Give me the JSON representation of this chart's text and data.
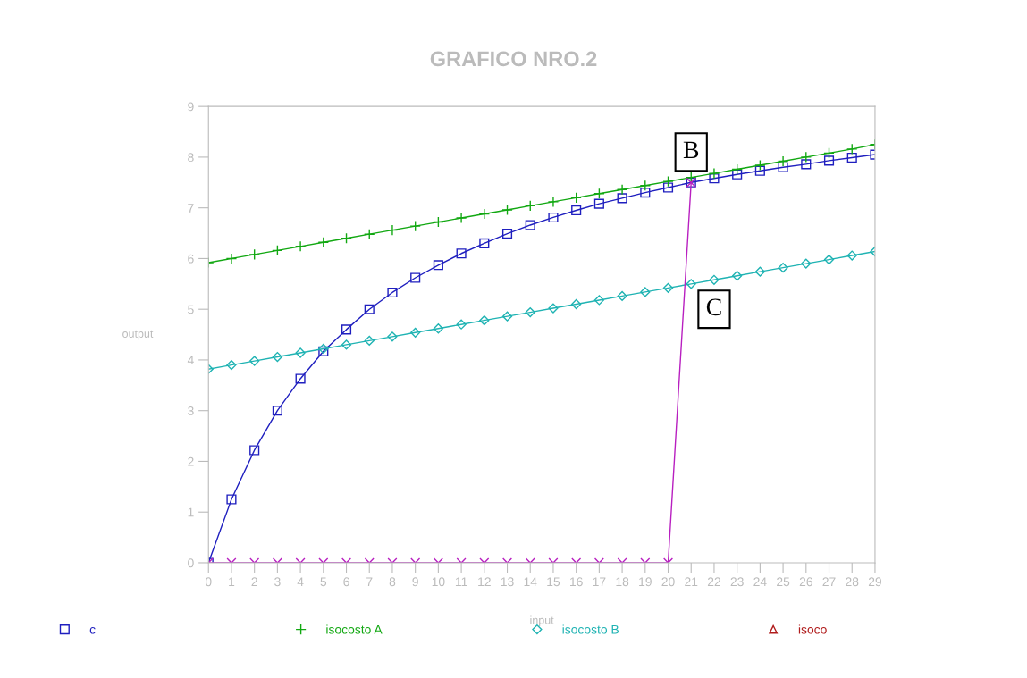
{
  "chart_data": {
    "type": "line",
    "title": "GRAFICO NRO.2",
    "xlabel": "input",
    "ylabel": "output",
    "categories": [
      "0",
      "1",
      "2",
      "3",
      "4",
      "5",
      "6",
      "7",
      "8",
      "9",
      "10",
      "11",
      "12",
      "13",
      "14",
      "15",
      "16",
      "17",
      "18",
      "19",
      "20",
      "21",
      "22",
      "23",
      "24",
      "25",
      "26",
      "27",
      "28",
      "29"
    ],
    "ylim": [
      0,
      9
    ],
    "yticks": [
      0,
      1,
      2,
      3,
      4,
      5,
      6,
      7,
      8,
      9
    ],
    "grid": false,
    "legend": "bottom",
    "series": [
      {
        "name": "c",
        "color": "#1f1fbf",
        "marker": "square",
        "values": [
          0,
          1.25,
          2.22,
          3.0,
          3.63,
          4.17,
          4.6,
          5.0,
          5.33,
          5.62,
          5.87,
          6.1,
          6.3,
          6.49,
          6.66,
          6.81,
          6.95,
          7.08,
          7.19,
          7.3,
          7.4,
          7.5,
          7.58,
          7.66,
          7.73,
          7.8,
          7.86,
          7.93,
          7.99,
          8.05
        ]
      },
      {
        "name": "isocosto A",
        "color": "#12a812",
        "marker": "cross",
        "values": [
          5.92,
          6.0,
          6.08,
          6.16,
          6.24,
          6.32,
          6.4,
          6.48,
          6.56,
          6.64,
          6.72,
          6.8,
          6.88,
          6.96,
          7.04,
          7.12,
          7.2,
          7.28,
          7.36,
          7.44,
          7.52,
          7.6,
          7.68,
          7.76,
          7.84,
          7.92,
          8.0,
          8.08,
          8.16,
          8.25
        ]
      },
      {
        "name": "isocosto B",
        "color": "#1fb3b3",
        "marker": "diamond",
        "values": [
          3.82,
          3.9,
          3.98,
          4.06,
          4.14,
          4.22,
          4.3,
          4.38,
          4.46,
          4.54,
          4.62,
          4.7,
          4.78,
          4.86,
          4.94,
          5.02,
          5.1,
          5.18,
          5.26,
          5.34,
          5.42,
          5.5,
          5.58,
          5.66,
          5.74,
          5.82,
          5.9,
          5.98,
          6.06,
          6.14
        ]
      },
      {
        "name": "isoco",
        "color": "#b01c1c",
        "marker": "triangle",
        "values": [
          null,
          null,
          null,
          null,
          null,
          null,
          null,
          null,
          null,
          null,
          null,
          null,
          null,
          null,
          null,
          null,
          null,
          null,
          null,
          null,
          null,
          null,
          null,
          null,
          null,
          null,
          null,
          null,
          null,
          null
        ]
      },
      {
        "color": "#b81fc0",
        "marker": "x",
        "values": [
          0,
          0,
          0,
          0,
          0,
          0,
          0,
          0,
          0,
          0,
          0,
          0,
          0,
          0,
          0,
          0,
          0,
          0,
          0,
          0,
          0,
          7.5,
          null,
          null,
          null,
          null,
          null,
          null,
          null,
          null
        ]
      }
    ],
    "annotations": [
      {
        "text": "B",
        "x": "21",
        "y": 8.1
      },
      {
        "text": "C",
        "x": "22",
        "y": 5.0
      }
    ]
  }
}
